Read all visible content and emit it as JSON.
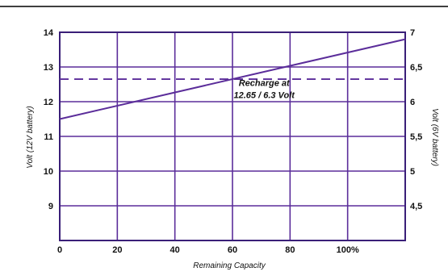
{
  "chart_data": {
    "type": "line",
    "xlabel": "Remaining Capacity",
    "ylabel": "Volt (12V battery)",
    "y2label": "Volt (6V battery)",
    "x_ticks": [
      {
        "value": 0,
        "label": "0"
      },
      {
        "value": 20,
        "label": "20"
      },
      {
        "value": 40,
        "label": "40"
      },
      {
        "value": 60,
        "label": "60"
      },
      {
        "value": 80,
        "label": "80"
      },
      {
        "value": 100,
        "label": "100%"
      }
    ],
    "y_ticks": [
      {
        "value": 9,
        "label": "9"
      },
      {
        "value": 10,
        "label": "10"
      },
      {
        "value": 11,
        "label": "11"
      },
      {
        "value": 12,
        "label": "12"
      },
      {
        "value": 13,
        "label": "13"
      },
      {
        "value": 14,
        "label": "14"
      }
    ],
    "y2_ticks": [
      {
        "value": 4.5,
        "label": "4,5"
      },
      {
        "value": 5,
        "label": "5"
      },
      {
        "value": 5.5,
        "label": "5,5"
      },
      {
        "value": 6,
        "label": "6"
      },
      {
        "value": 6.5,
        "label": "6,5"
      },
      {
        "value": 7,
        "label": "7"
      }
    ],
    "xlim": [
      0,
      120
    ],
    "ylim": [
      8,
      14
    ],
    "y2lim": [
      4,
      7
    ],
    "grid": true,
    "series": [
      {
        "x": [
          0,
          120
        ],
        "y": [
          11.5,
          13.8
        ]
      }
    ],
    "threshold": {
      "y": 12.65,
      "style": "dashed"
    },
    "annotation": {
      "lines": [
        "Recharge at",
        "12.65 / 6.3 Volt"
      ],
      "x": 71,
      "y": 12.45
    },
    "colors": {
      "line": "#5b2d9a",
      "grid": "#5b2d9a",
      "frame": "#3a1f78",
      "header_rule": "#000000"
    }
  }
}
